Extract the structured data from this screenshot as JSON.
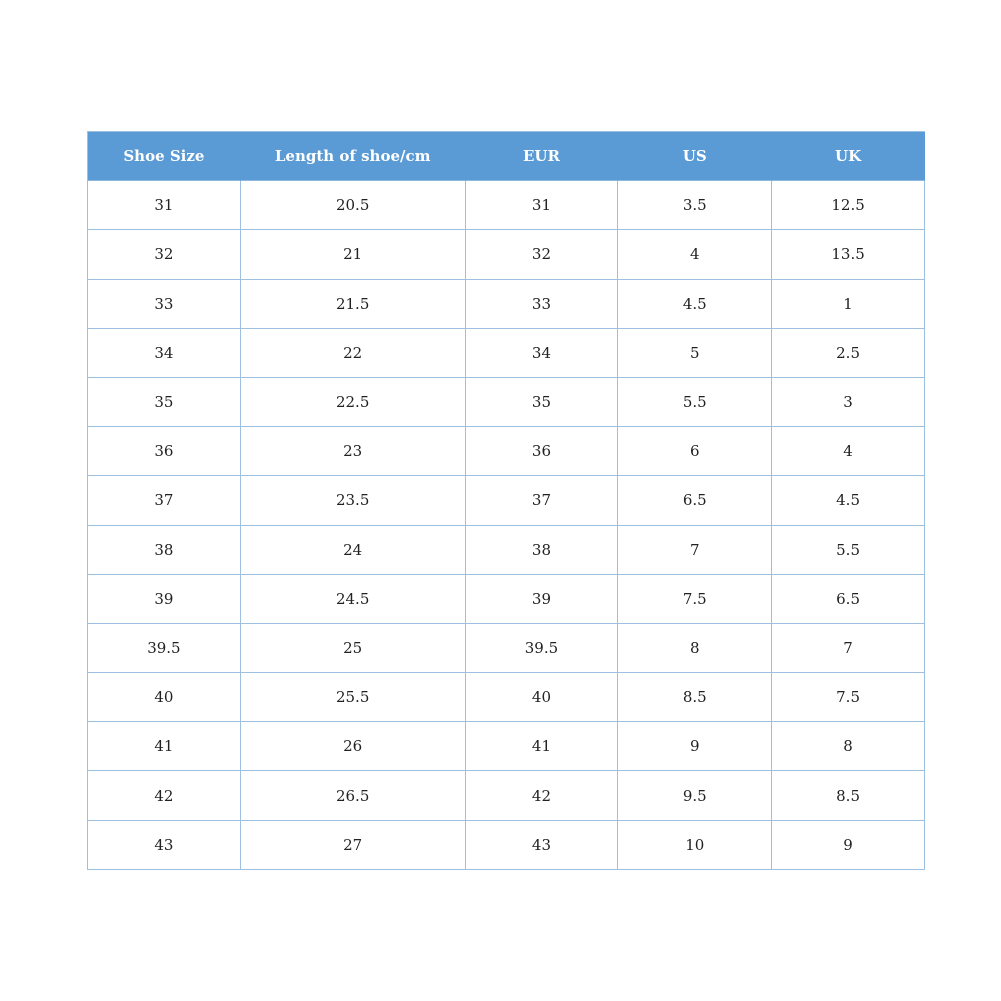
{
  "table": {
    "header": [
      "Shoe Size",
      "Length of shoe/cm",
      "EUR",
      "US",
      "UK"
    ],
    "rows": [
      [
        "31",
        "20.5",
        "31",
        "3.5",
        "12.5"
      ],
      [
        "32",
        "21",
        "32",
        "4",
        "13.5"
      ],
      [
        "33",
        "21.5",
        "33",
        "4.5",
        "1"
      ],
      [
        "34",
        "22",
        "34",
        "5",
        "2.5"
      ],
      [
        "35",
        "22.5",
        "35",
        "5.5",
        "3"
      ],
      [
        "36",
        "23",
        "36",
        "6",
        "4"
      ],
      [
        "37",
        "23.5",
        "37",
        "6.5",
        "4.5"
      ],
      [
        "38",
        "24",
        "38",
        "7",
        "5.5"
      ],
      [
        "39",
        "24.5",
        "39",
        "7.5",
        "6.5"
      ],
      [
        "39.5",
        "25",
        "39.5",
        "8",
        "7"
      ],
      [
        "40",
        "25.5",
        "40",
        "8.5",
        "7.5"
      ],
      [
        "41",
        "26",
        "41",
        "9",
        "8"
      ],
      [
        "42",
        "26.5",
        "42",
        "9.5",
        "8.5"
      ],
      [
        "43",
        "27",
        "43",
        "10",
        "9"
      ]
    ]
  }
}
